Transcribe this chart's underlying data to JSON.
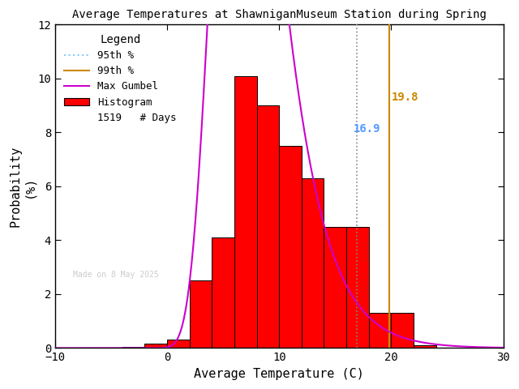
{
  "title": "Average Temperatures at ShawniganMuseum Station during Spring",
  "xlabel": "Average Temperature (C)",
  "ylabel": "Probability\n(%)",
  "xlim": [
    -10,
    30
  ],
  "ylim": [
    0,
    12
  ],
  "xticks": [
    -10,
    0,
    10,
    20,
    30
  ],
  "yticks": [
    0,
    2,
    4,
    6,
    8,
    10,
    12
  ],
  "bin_edges": [
    -10,
    -8,
    -6,
    -4,
    -2,
    0,
    2,
    4,
    6,
    8,
    10,
    12,
    14,
    16,
    18,
    20,
    22,
    24,
    26,
    28,
    30
  ],
  "bin_heights": [
    0.0,
    0.0,
    0.0,
    0.05,
    0.15,
    0.3,
    2.5,
    4.1,
    10.1,
    9.0,
    7.5,
    6.3,
    4.5,
    4.5,
    1.3,
    1.3,
    0.1,
    0.0,
    0.0,
    0.0
  ],
  "hist_color": "#ff0000",
  "hist_edgecolor": "#000000",
  "gumbel_mu": 6.5,
  "gumbel_beta": 2.8,
  "pct95": 16.9,
  "pct99": 19.8,
  "n_days": 1519,
  "watermark": "Made on 8 May 2025",
  "bg_color": "#ffffff",
  "title_color": "#000000",
  "pct95_color": "#5599ff",
  "pct99_color": "#cc8800",
  "pct95_line_color": "#888888",
  "pct99_line_color": "#cc8800",
  "gumbel_color": "#cc00cc",
  "legend_title": "Legend"
}
